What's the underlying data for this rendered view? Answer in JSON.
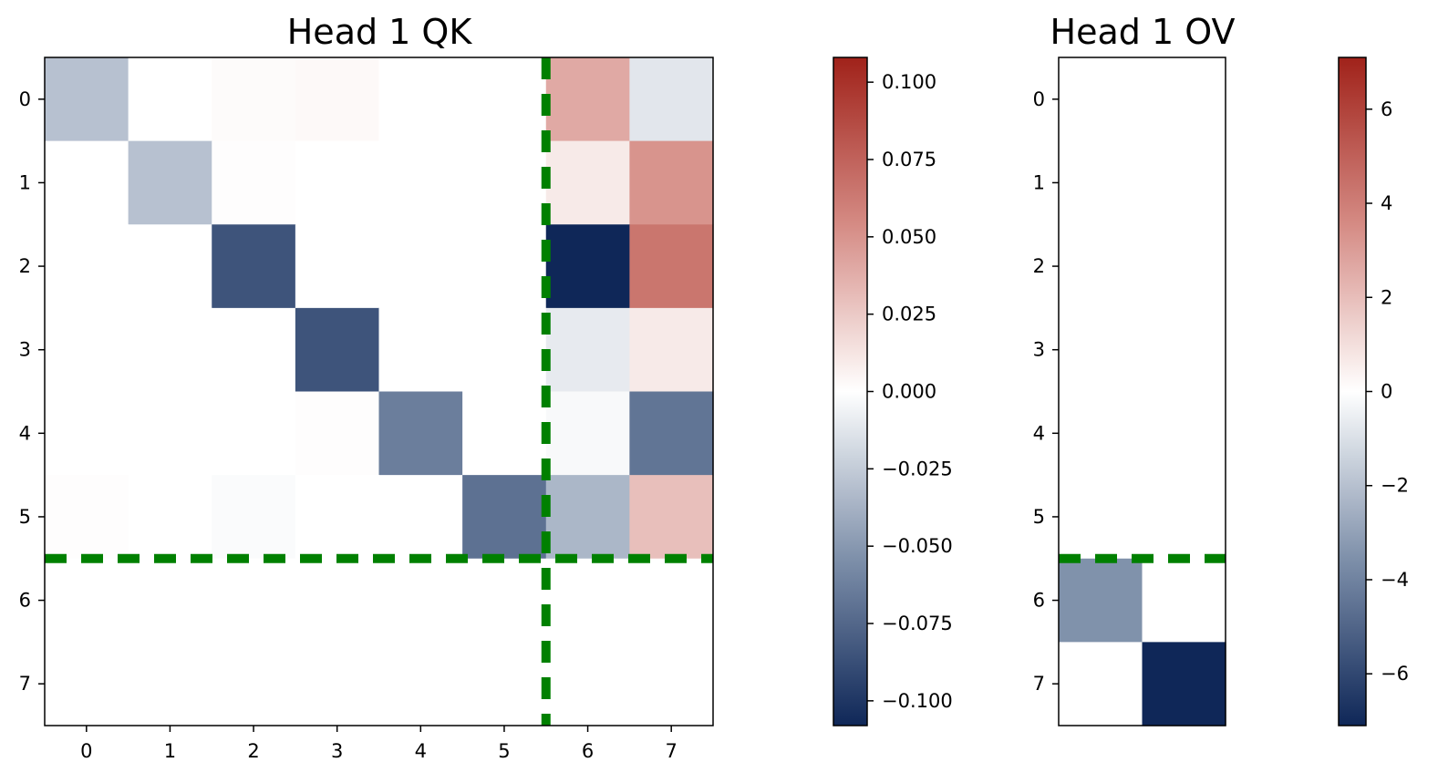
{
  "chart_data": [
    {
      "type": "heatmap",
      "title": "Head 1 QK",
      "xlabel": "",
      "ylabel": "",
      "x_ticks": [
        "0",
        "1",
        "2",
        "3",
        "4",
        "5",
        "6",
        "7"
      ],
      "y_ticks": [
        "0",
        "1",
        "2",
        "3",
        "4",
        "5",
        "6",
        "7"
      ],
      "values": [
        [
          -0.03,
          0.0,
          0.002,
          0.003,
          0.0,
          0.0,
          0.04,
          -0.012
        ],
        [
          0.0,
          -0.03,
          0.001,
          0.0,
          0.0,
          0.0,
          0.01,
          0.05
        ],
        [
          0.0,
          0.0,
          -0.085,
          0.0,
          0.0,
          0.0,
          -0.108,
          0.065
        ],
        [
          0.0,
          0.0,
          0.0,
          -0.085,
          0.0,
          0.0,
          -0.01,
          0.01
        ],
        [
          0.0,
          0.0,
          0.0,
          0.001,
          -0.063,
          0.0,
          -0.003,
          -0.068
        ],
        [
          0.001,
          0.0,
          -0.002,
          0.0,
          0.0,
          -0.07,
          -0.035,
          0.03
        ],
        [
          0.0,
          0.0,
          0.0,
          0.0,
          0.0,
          0.0,
          0.0,
          0.0
        ],
        [
          0.0,
          0.0,
          0.0,
          0.0,
          0.0,
          0.0,
          0.0,
          0.0
        ]
      ],
      "divider_lines": [
        {
          "orientation": "horizontal",
          "at": 5.5
        },
        {
          "orientation": "vertical",
          "at": 5.5
        }
      ],
      "divider_color": "#008000",
      "colorbar": {
        "vmin": -0.108,
        "vmax": 0.108,
        "ticks": [
          0.1,
          0.075,
          0.05,
          0.025,
          0.0,
          -0.025,
          -0.05,
          -0.075,
          -0.1
        ],
        "tick_labels": [
          "0.100",
          "0.075",
          "0.050",
          "0.025",
          "0.000",
          "−0.025",
          "−0.050",
          "−0.075",
          "−0.100"
        ]
      }
    },
    {
      "type": "heatmap",
      "title": "Head 1 OV",
      "xlabel": "",
      "ylabel": "",
      "x_ticks": [],
      "y_ticks": [
        "0",
        "1",
        "2",
        "3",
        "4",
        "5",
        "6",
        "7"
      ],
      "values": [
        [
          0,
          0
        ],
        [
          0,
          0
        ],
        [
          0,
          0
        ],
        [
          0,
          0
        ],
        [
          0,
          0
        ],
        [
          0,
          0
        ],
        [
          -3.5,
          0
        ],
        [
          0,
          -7.1
        ]
      ],
      "divider_lines": [
        {
          "orientation": "horizontal",
          "at": 5.5
        }
      ],
      "divider_color": "#008000",
      "colorbar": {
        "vmin": -7.1,
        "vmax": 7.1,
        "ticks": [
          6,
          4,
          2,
          0,
          -2,
          -4,
          -6
        ],
        "tick_labels": [
          "6",
          "4",
          "2",
          "0",
          "−2",
          "−4",
          "−6"
        ]
      }
    }
  ],
  "colors": {
    "negative_end": "#0f2758",
    "negative_mid": "#7e90aa",
    "zero": "#ffffff",
    "positive_mid": "#d58b84",
    "positive_end": "#a0221a"
  }
}
